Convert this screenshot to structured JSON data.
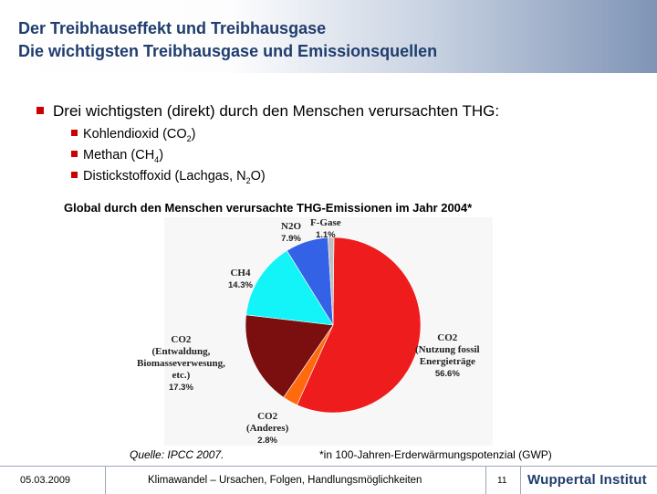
{
  "header": {
    "title": "Der Treibhauseffekt und Treibhausgase",
    "subtitle": "Die wichtigsten Treibhausgase und Emissionsquellen"
  },
  "bullets": {
    "main": "Drei wichtigsten (direkt) durch den Menschen verursachten THG:",
    "items": [
      {
        "text": "Kohlendioxid (CO",
        "sub": "2",
        "tail": ")"
      },
      {
        "text": "Methan (CH",
        "sub": "4",
        "tail": ")"
      },
      {
        "text": "Distickstoffoxid (Lachgas, N",
        "sub": "2",
        "tail": "O)"
      }
    ]
  },
  "chart_data": {
    "type": "pie",
    "title": "Global durch den Menschen verursachte THG-Emissionen im Jahr 2004*",
    "slices": [
      {
        "label": "CO2 (Nutzung fossil Energieträge",
        "value": 56.6,
        "value_label": "56.6%",
        "color": "#ee1c1c"
      },
      {
        "label": "CO2 (Anderes)",
        "value": 2.8,
        "value_label": "2.8%",
        "color": "#ff6a0f"
      },
      {
        "label": "CO2 (Entwaldung, Biomasseverwesung, etc.)",
        "value": 17.3,
        "value_label": "17.3%",
        "color": "#7b0e0e"
      },
      {
        "label": "CH4",
        "value": 14.3,
        "value_label": "14.3%",
        "color": "#12f4f8"
      },
      {
        "label": "N2O",
        "value": 7.9,
        "value_label": "7.9%",
        "color": "#3462e6"
      },
      {
        "label": "F-Gase",
        "value": 1.1,
        "value_label": "1.1%",
        "color": "#bfbfbf"
      }
    ],
    "label_lines": {
      "fossil": [
        "CO2",
        "(Nutzung fossil",
        "Energieträge"
      ],
      "anderes": [
        "CO2",
        "(Anderes)"
      ],
      "entwaldung": [
        "CO2",
        "(Entwaldung,",
        "Biomasseverwesung,",
        "etc.)"
      ],
      "ch4": [
        "CH4"
      ],
      "n2o": [
        "N2O"
      ],
      "fgase": [
        "F-Gase"
      ]
    }
  },
  "source": "Quelle: IPCC 2007.",
  "note": "*in 100-Jahren-Erderwärmungspotenzial (GWP)",
  "footer": {
    "date": "05.03.2009",
    "title": "Klimawandel – Ursachen, Folgen, Handlungsmöglichkeiten",
    "page": "11",
    "logo": "Wuppertal Institut"
  }
}
